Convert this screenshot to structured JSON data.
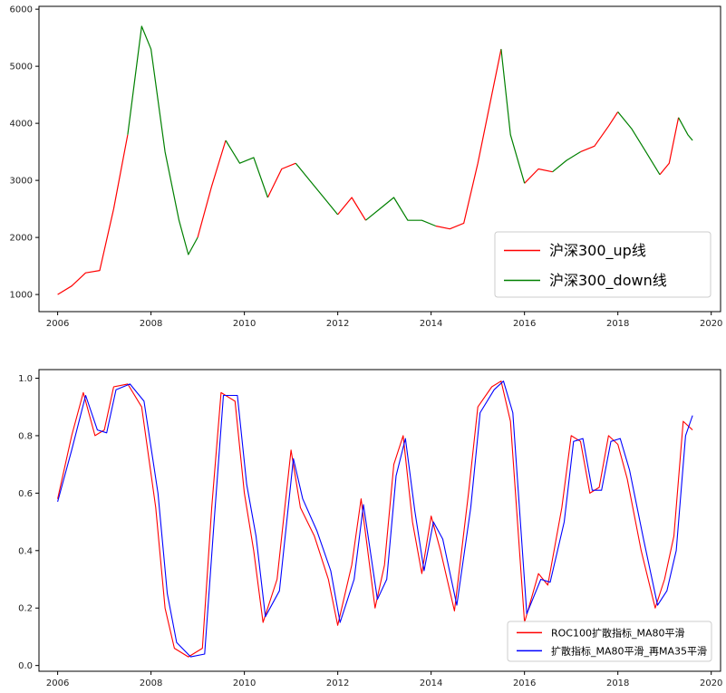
{
  "chart_data": [
    {
      "type": "line",
      "title": "",
      "xlabel": "",
      "ylabel": "",
      "xlim": [
        2005.6,
        2020.2
      ],
      "ylim": [
        700,
        6050
      ],
      "xticks": [
        2006,
        2008,
        2010,
        2012,
        2014,
        2016,
        2018,
        2020
      ],
      "xtick_labels": [
        "2006",
        "2008",
        "2010",
        "2012",
        "2014",
        "2016",
        "2018",
        "2020"
      ],
      "yticks": [
        1000,
        2000,
        3000,
        4000,
        5000,
        6000
      ],
      "ytick_labels": [
        "1000",
        "2000",
        "3000",
        "4000",
        "5000",
        "6000"
      ],
      "grid": false,
      "legend_position": "bottom-right",
      "x": [
        2006.0,
        2006.3,
        2006.6,
        2006.9,
        2007.2,
        2007.5,
        2007.8,
        2008.0,
        2008.3,
        2008.6,
        2008.8,
        2009.0,
        2009.3,
        2009.6,
        2009.9,
        2010.2,
        2010.5,
        2010.8,
        2011.1,
        2011.4,
        2011.7,
        2012.0,
        2012.3,
        2012.6,
        2012.9,
        2013.2,
        2013.5,
        2013.8,
        2014.1,
        2014.4,
        2014.7,
        2015.0,
        2015.3,
        2015.5,
        2015.7,
        2016.0,
        2016.3,
        2016.6,
        2016.9,
        2017.2,
        2017.5,
        2017.8,
        2018.0,
        2018.3,
        2018.6,
        2018.9,
        2019.1,
        2019.3,
        2019.5,
        2019.6
      ],
      "y": [
        1000,
        1150,
        1380,
        1420,
        2500,
        3800,
        5700,
        5300,
        3500,
        2300,
        1700,
        2000,
        2900,
        3700,
        3300,
        3400,
        2700,
        3200,
        3300,
        3000,
        2700,
        2400,
        2700,
        2300,
        2500,
        2700,
        2300,
        2300,
        2200,
        2150,
        2250,
        3300,
        4500,
        5300,
        3800,
        2950,
        3200,
        3150,
        3350,
        3500,
        3600,
        3950,
        4200,
        3900,
        3500,
        3100,
        3300,
        4100,
        3800,
        3700
      ],
      "series": [
        {
          "name": "沪深300_up线",
          "color": "#ff0000",
          "segments": [
            [
              0,
              5
            ],
            [
              11,
              13
            ],
            [
              16,
              18
            ],
            [
              21,
              23
            ],
            [
              28,
              33
            ],
            [
              35,
              37
            ],
            [
              39,
              42
            ],
            [
              45,
              47
            ]
          ]
        },
        {
          "name": "沪深300_down线",
          "color": "#008000",
          "segments": [
            [
              5,
              11
            ],
            [
              13,
              16
            ],
            [
              18,
              21
            ],
            [
              23,
              28
            ],
            [
              33,
              35
            ],
            [
              37,
              39
            ],
            [
              42,
              45
            ],
            [
              47,
              49
            ]
          ]
        }
      ]
    },
    {
      "type": "line",
      "title": "",
      "xlabel": "",
      "ylabel": "",
      "xlim": [
        2005.6,
        2020.2
      ],
      "ylim": [
        -0.02,
        1.03
      ],
      "xticks": [
        2006,
        2008,
        2010,
        2012,
        2014,
        2016,
        2018,
        2020
      ],
      "xtick_labels": [
        "2006",
        "2008",
        "2010",
        "2012",
        "2014",
        "2016",
        "2018",
        "2020"
      ],
      "yticks": [
        0.0,
        0.2,
        0.4,
        0.6,
        0.8,
        1.0
      ],
      "ytick_labels": [
        "0.0",
        "0.2",
        "0.4",
        "0.6",
        "0.8",
        "1.0"
      ],
      "grid": false,
      "legend_position": "bottom-right",
      "series": [
        {
          "name": "ROC100扩散指标_MA80平滑",
          "color": "#ff0000",
          "x": [
            2006.0,
            2006.3,
            2006.55,
            2006.8,
            2007.0,
            2007.2,
            2007.5,
            2007.8,
            2008.1,
            2008.3,
            2008.5,
            2008.8,
            2009.1,
            2009.3,
            2009.5,
            2009.8,
            2010.0,
            2010.2,
            2010.4,
            2010.7,
            2011.0,
            2011.2,
            2011.5,
            2011.8,
            2012.0,
            2012.3,
            2012.5,
            2012.8,
            2013.0,
            2013.2,
            2013.4,
            2013.6,
            2013.8,
            2014.0,
            2014.2,
            2014.5,
            2014.8,
            2015.0,
            2015.3,
            2015.5,
            2015.7,
            2016.0,
            2016.3,
            2016.5,
            2016.8,
            2017.0,
            2017.2,
            2017.4,
            2017.6,
            2017.8,
            2018.0,
            2018.2,
            2018.5,
            2018.8,
            2019.0,
            2019.2,
            2019.4,
            2019.6
          ],
          "y": [
            0.58,
            0.8,
            0.95,
            0.8,
            0.82,
            0.97,
            0.98,
            0.9,
            0.55,
            0.2,
            0.06,
            0.03,
            0.06,
            0.55,
            0.95,
            0.92,
            0.6,
            0.4,
            0.15,
            0.3,
            0.75,
            0.55,
            0.45,
            0.3,
            0.14,
            0.35,
            0.58,
            0.2,
            0.35,
            0.7,
            0.8,
            0.5,
            0.32,
            0.52,
            0.4,
            0.19,
            0.6,
            0.9,
            0.97,
            0.99,
            0.85,
            0.15,
            0.32,
            0.28,
            0.55,
            0.8,
            0.78,
            0.6,
            0.62,
            0.8,
            0.77,
            0.65,
            0.4,
            0.2,
            0.3,
            0.45,
            0.85,
            0.82
          ]
        },
        {
          "name": "扩散指标_MA80平滑_再MA35平滑",
          "color": "#0000ff",
          "x": [
            2006.0,
            2006.3,
            2006.6,
            2006.85,
            2007.05,
            2007.25,
            2007.55,
            2007.85,
            2008.15,
            2008.35,
            2008.55,
            2008.85,
            2009.15,
            2009.35,
            2009.55,
            2009.85,
            2010.05,
            2010.25,
            2010.45,
            2010.75,
            2011.05,
            2011.25,
            2011.55,
            2011.85,
            2012.05,
            2012.35,
            2012.55,
            2012.85,
            2013.05,
            2013.25,
            2013.45,
            2013.65,
            2013.85,
            2014.05,
            2014.25,
            2014.55,
            2014.85,
            2015.05,
            2015.35,
            2015.55,
            2015.75,
            2016.05,
            2016.35,
            2016.55,
            2016.85,
            2017.05,
            2017.25,
            2017.45,
            2017.65,
            2017.85,
            2018.05,
            2018.25,
            2018.55,
            2018.85,
            2019.05,
            2019.25,
            2019.45,
            2019.6
          ],
          "y": [
            0.57,
            0.75,
            0.94,
            0.82,
            0.81,
            0.96,
            0.98,
            0.92,
            0.6,
            0.25,
            0.08,
            0.03,
            0.04,
            0.5,
            0.94,
            0.94,
            0.63,
            0.45,
            0.17,
            0.26,
            0.72,
            0.58,
            0.47,
            0.33,
            0.15,
            0.3,
            0.56,
            0.23,
            0.3,
            0.66,
            0.79,
            0.54,
            0.33,
            0.5,
            0.44,
            0.21,
            0.55,
            0.88,
            0.96,
            0.99,
            0.88,
            0.18,
            0.3,
            0.29,
            0.5,
            0.78,
            0.79,
            0.61,
            0.61,
            0.78,
            0.79,
            0.68,
            0.44,
            0.21,
            0.26,
            0.4,
            0.8,
            0.87
          ]
        }
      ]
    }
  ]
}
